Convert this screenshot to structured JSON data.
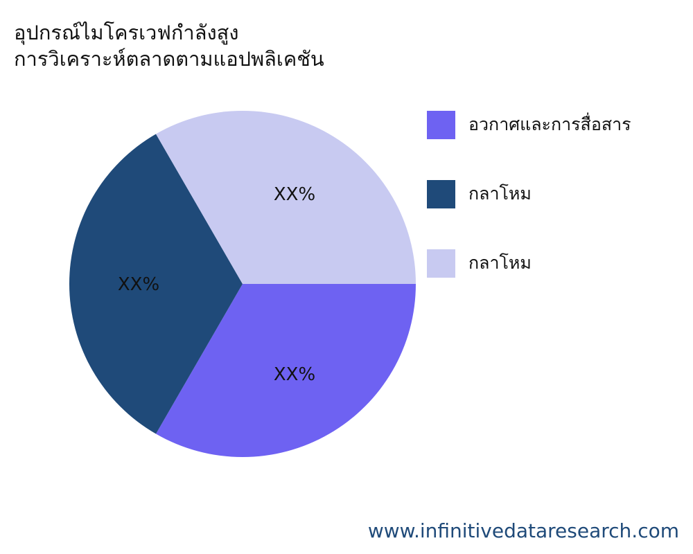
{
  "title_lines": [
    "อุปกรณ์ไมโครเวฟกำลังสูง",
    "การวิเคราะห์ตลาดตามแอปพลิเคชัน"
  ],
  "chart_data": {
    "type": "pie",
    "title": "อุปกรณ์ไมโครเวฟกำลังสูง การวิเคราะห์ตลาดตามแอปพลิเคชัน",
    "start_angle": "3 o'clock, clockwise",
    "slices": [
      {
        "name": "อวกาศและการสื่อสาร",
        "value": 33.3,
        "label": "XX%",
        "color": "#6e62f2"
      },
      {
        "name": "กลาโหม",
        "value": 33.3,
        "label": "XX%",
        "color": "#1f4a79"
      },
      {
        "name": "กลาโหม",
        "value": 33.3,
        "label": "XX%",
        "color": "#c8caf1"
      }
    ],
    "legend_position": "right"
  },
  "footer": "www.infinitivedataresearch.com"
}
